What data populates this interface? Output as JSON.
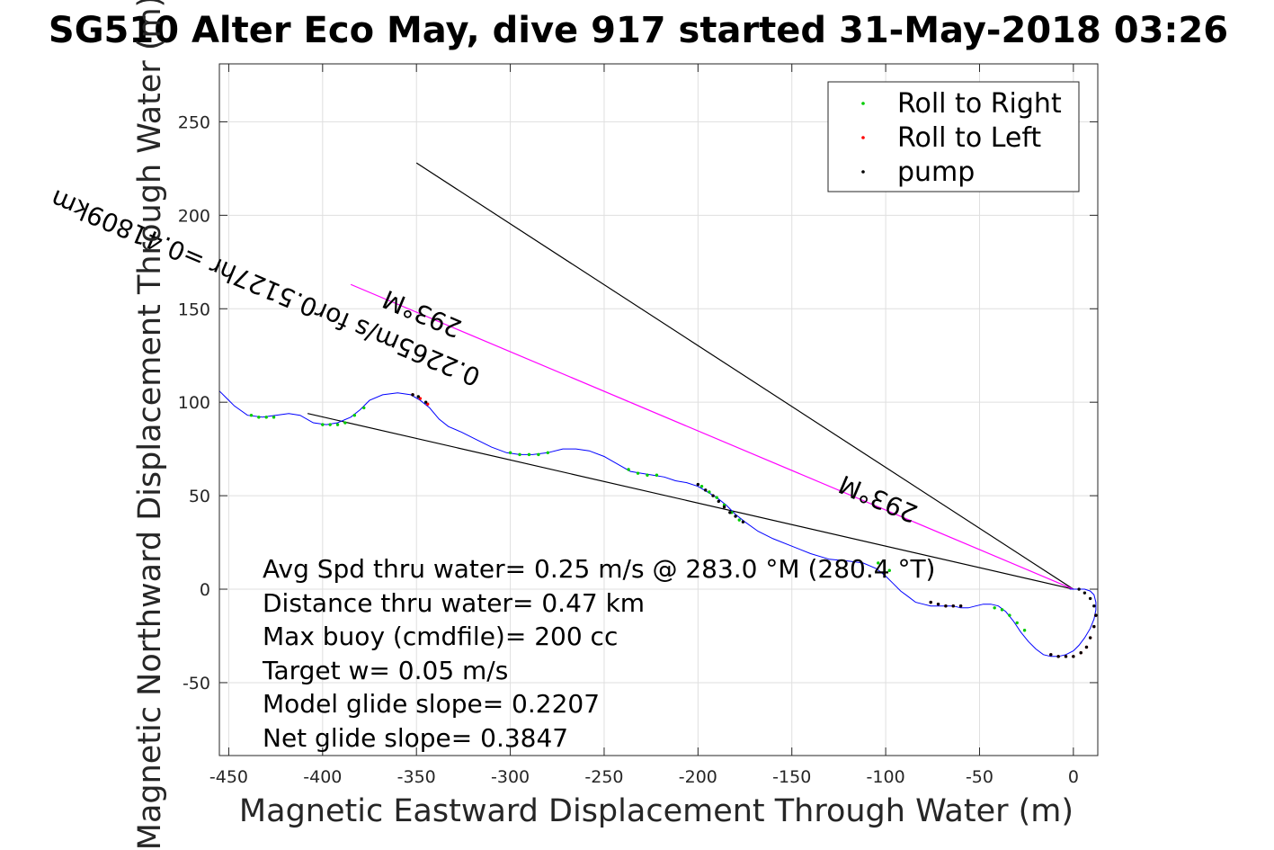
{
  "chart_data": {
    "type": "line",
    "title": "SG510 Alter Eco May, dive 917 started 31-May-2018 03:26",
    "xlabel": "Magnetic Eastward Displacement Through Water (m)",
    "ylabel": "Magnetic Northward Displacement Through Water (m)",
    "xlim": [
      -455,
      13
    ],
    "ylim": [
      -89,
      281
    ],
    "xticks": [
      -450,
      -400,
      -350,
      -300,
      -250,
      -200,
      -150,
      -100,
      -50,
      0
    ],
    "yticks": [
      -50,
      0,
      50,
      100,
      150,
      200,
      250
    ],
    "grid": true,
    "legend": {
      "placement": "top-right",
      "entries": [
        {
          "label": "Roll to Right",
          "color": "#00cc00"
        },
        {
          "label": "Roll to Left",
          "color": "#ff0000"
        },
        {
          "label": "pump",
          "color": "#000000"
        }
      ]
    },
    "track": {
      "color": "#0000ff",
      "x": [
        -455,
        -447,
        -440,
        -432,
        -425,
        -418,
        -412,
        -405,
        -398,
        -392,
        -385,
        -380,
        -375,
        -368,
        -360,
        -353,
        -348,
        -343,
        -338,
        -333,
        -326,
        -318,
        -310,
        -302,
        -295,
        -288,
        -280,
        -272,
        -265,
        -258,
        -250,
        -243,
        -236,
        -230,
        -224,
        -218,
        -212,
        -206,
        -200,
        -195,
        -190,
        -185,
        -180,
        -175,
        -168,
        -160,
        -150,
        -140,
        -130,
        -120,
        -112,
        -105,
        -100,
        -96,
        -92,
        -88,
        -84,
        -80,
        -76,
        -72,
        -68,
        -64,
        -60,
        -56,
        -52,
        -48,
        -44,
        -40,
        -36,
        -32,
        -28,
        -24,
        -20,
        -16,
        -12,
        -8,
        -4,
        0,
        3,
        6,
        9,
        11,
        12,
        12,
        11,
        9,
        6,
        3,
        0,
        -2
      ],
      "y": [
        106,
        98,
        93,
        92,
        93,
        94,
        93,
        89,
        88,
        89,
        92,
        96,
        101,
        104,
        105,
        104,
        101,
        97,
        91,
        87,
        84,
        80,
        76,
        73,
        72,
        72,
        73,
        75,
        75,
        74,
        71,
        67,
        63,
        62,
        61,
        60,
        58,
        57,
        55,
        52,
        49,
        45,
        40,
        36,
        31,
        27,
        23,
        19,
        16,
        15,
        14,
        11,
        7,
        3,
        -1,
        -4,
        -7,
        -8,
        -9,
        -9,
        -9,
        -9,
        -10,
        -10,
        -9,
        -8,
        -8,
        -9,
        -12,
        -17,
        -23,
        -28,
        -32,
        -35,
        -36,
        -36,
        -35,
        -33,
        -30,
        -26,
        -21,
        -16,
        -11,
        -7,
        -3,
        -1,
        0,
        0,
        0,
        0
      ]
    },
    "roll_right_points": {
      "x": [
        -438,
        -434,
        -430,
        -426,
        -400,
        -396,
        -392,
        -388,
        -383,
        -378,
        -300,
        -295,
        -290,
        -285,
        -280,
        -237,
        -232,
        -227,
        -222,
        -198,
        -194,
        -190,
        -186,
        -182,
        -178,
        -104,
        -98,
        -42,
        -38,
        -34,
        -30,
        -26
      ],
      "y": [
        93,
        92,
        92,
        92,
        88,
        88,
        88,
        89,
        93,
        97,
        73,
        72,
        72,
        72,
        73,
        64,
        62,
        61,
        61,
        55,
        52,
        49,
        45,
        41,
        37,
        14,
        10,
        -10,
        -11,
        -14,
        -18,
        -22
      ]
    },
    "roll_left_points": {
      "x": [
        -352,
        -348,
        -344,
        -76,
        -72,
        -68,
        -64,
        -60,
        -12,
        -8,
        -4,
        0,
        4,
        7,
        9,
        11,
        12
      ],
      "y": [
        104,
        102,
        99,
        -7,
        -8,
        -9,
        -9,
        -9,
        -35,
        -36,
        -36,
        -36,
        -34,
        -31,
        -26,
        -20,
        -14
      ]
    },
    "pump_points": {
      "x": [
        -200,
        -196,
        -192,
        -189,
        -186,
        -183,
        -180,
        -176,
        -345,
        -349,
        -352,
        -76,
        -72,
        -68,
        -64,
        -60,
        -12,
        -8,
        -4,
        0,
        4,
        7,
        9,
        11,
        12,
        11,
        9,
        6,
        3
      ],
      "y": [
        56,
        53,
        50,
        47,
        44,
        41,
        39,
        36,
        100,
        103,
        104,
        -7,
        -8,
        -9,
        -9,
        -9,
        -35,
        -36,
        -36,
        -36,
        -34,
        -31,
        -26,
        -20,
        -14,
        -9,
        -5,
        -2,
        0
      ]
    },
    "reference_lines": [
      {
        "name": "heading-line-long",
        "color": "#000000",
        "x": [
          0,
          -350
        ],
        "y": [
          0,
          228
        ]
      },
      {
        "name": "net-displacement-line",
        "color": "#000000",
        "x": [
          0,
          -408
        ],
        "y": [
          0,
          94
        ]
      },
      {
        "name": "current-line",
        "color": "#ff00ff",
        "x": [
          0,
          -385
        ],
        "y": [
          0,
          163
        ]
      }
    ],
    "annotations": [
      {
        "text": "293°M",
        "x": -325,
        "y": 143,
        "rotation": 23
      },
      {
        "text": "0.2265m/s for0.5127hr =0.41809km",
        "x": -315,
        "y": 117,
        "rotation": 23
      },
      {
        "text": "293°M",
        "x": -82,
        "y": 44,
        "rotation": 23
      }
    ],
    "summary_text": [
      "Avg Spd thru water=  0.25 m/s @ 283.0 °M (280.4 °T)",
      "Distance thru water=  0.47 km",
      "Max buoy (cmdfile)= 200 cc",
      "Target w= 0.05 m/s",
      "Model glide slope= 0.2207",
      "Net glide slope= 0.3847"
    ]
  }
}
